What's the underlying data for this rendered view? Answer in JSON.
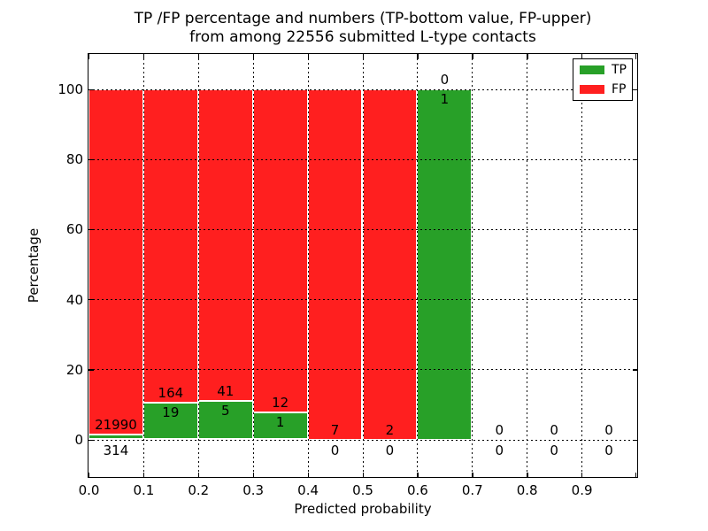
{
  "title_line1": "TP /FP percentage and numbers (TP-bottom value, FP-upper)",
  "title_line2": "from among 22556 submitted L-type contacts",
  "chart_data": {
    "type": "bar",
    "stacked": true,
    "title": "TP /FP percentage and numbers (TP-bottom value, FP-upper) from among 22556 submitted L-type contacts",
    "total_submitted": 22556,
    "contact_type": "L-type",
    "xlabel": "Predicted probability",
    "ylabel": "Percentage",
    "xlim": [
      0.0,
      1.0
    ],
    "ylim": [
      -10,
      110
    ],
    "grid": "dotted",
    "x_tick_labels": [
      "0.0",
      "0.1",
      "0.2",
      "0.3",
      "0.4",
      "0.5",
      "0.6",
      "0.7",
      "0.8",
      "0.9"
    ],
    "y_tick_values": [
      0,
      20,
      40,
      60,
      80,
      100
    ],
    "y_tick_labels": [
      "0",
      "20",
      "40",
      "60",
      "80",
      "100"
    ],
    "categories": [
      "0.0-0.1",
      "0.1-0.2",
      "0.2-0.3",
      "0.3-0.4",
      "0.4-0.5",
      "0.5-0.6",
      "0.6-0.7",
      "0.7-0.8",
      "0.8-0.9",
      "0.9-1.0"
    ],
    "series": [
      {
        "name": "TP",
        "color": "#28a028",
        "counts": [
          314,
          19,
          5,
          1,
          0,
          0,
          1,
          0,
          0,
          0
        ],
        "pct": [
          1.41,
          10.38,
          10.87,
          7.69,
          0,
          0,
          100,
          0,
          0,
          0
        ]
      },
      {
        "name": "FP",
        "color": "#ff1f1f",
        "counts": [
          21990,
          164,
          41,
          12,
          7,
          2,
          0,
          0,
          0,
          0
        ],
        "pct": [
          98.59,
          89.62,
          89.13,
          92.31,
          100,
          100,
          0,
          0,
          0,
          0
        ]
      }
    ],
    "legend": {
      "position": "upper right",
      "entries": [
        {
          "label": "TP",
          "color": "#28a028"
        },
        {
          "label": "FP",
          "color": "#ff1f1f"
        }
      ]
    }
  }
}
